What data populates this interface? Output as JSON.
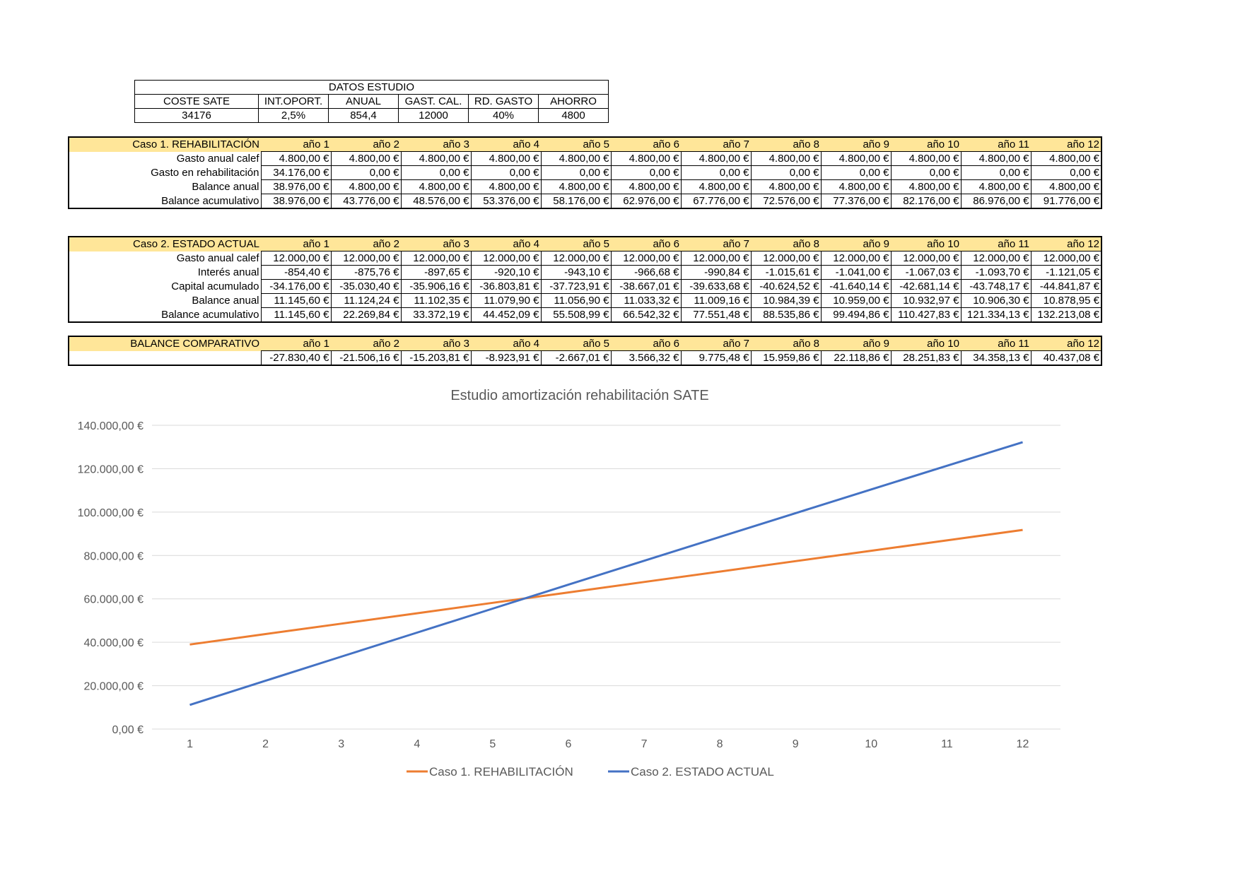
{
  "datos": {
    "title": "DATOS ESTUDIO",
    "headers": [
      "COSTE SATE",
      "INT.OPORT.",
      "ANUAL",
      "GAST. CAL.",
      "RD. GASTO",
      "AHORRO"
    ],
    "values": [
      "34176",
      "2,5%",
      "854,4",
      "12000",
      "40%",
      "4800"
    ]
  },
  "caso1": {
    "title": "Caso 1. REHABILITACIÓN",
    "years": [
      "año 1",
      "año 2",
      "año 3",
      "año 4",
      "año 5",
      "año 6",
      "año 7",
      "año 8",
      "año 9",
      "año 10",
      "año 11",
      "año 12"
    ],
    "rows": [
      {
        "label": "Gasto anual calef",
        "values": [
          "4.800,00 €",
          "4.800,00 €",
          "4.800,00 €",
          "4.800,00 €",
          "4.800,00 €",
          "4.800,00 €",
          "4.800,00 €",
          "4.800,00 €",
          "4.800,00 €",
          "4.800,00 €",
          "4.800,00 €",
          "4.800,00 €"
        ]
      },
      {
        "label": "Gasto en rehabilitación",
        "values": [
          "34.176,00 €",
          "0,00 €",
          "0,00 €",
          "0,00 €",
          "0,00 €",
          "0,00 €",
          "0,00 €",
          "0,00 €",
          "0,00 €",
          "0,00 €",
          "0,00 €",
          "0,00 €"
        ]
      },
      {
        "label": "Balance anual",
        "values": [
          "38.976,00 €",
          "4.800,00 €",
          "4.800,00 €",
          "4.800,00 €",
          "4.800,00 €",
          "4.800,00 €",
          "4.800,00 €",
          "4.800,00 €",
          "4.800,00 €",
          "4.800,00 €",
          "4.800,00 €",
          "4.800,00 €"
        ]
      },
      {
        "label": "Balance acumulativo",
        "values": [
          "38.976,00 €",
          "43.776,00 €",
          "48.576,00 €",
          "53.376,00 €",
          "58.176,00 €",
          "62.976,00 €",
          "67.776,00 €",
          "72.576,00 €",
          "77.376,00 €",
          "82.176,00 €",
          "86.976,00 €",
          "91.776,00 €"
        ]
      }
    ]
  },
  "caso2": {
    "title": "Caso 2. ESTADO ACTUAL",
    "years": [
      "año 1",
      "año 2",
      "año 3",
      "año 4",
      "año 5",
      "año 6",
      "año 7",
      "año 8",
      "año 9",
      "año 10",
      "año 11",
      "año 12"
    ],
    "rows": [
      {
        "label": "Gasto anual calef",
        "values": [
          "12.000,00 €",
          "12.000,00 €",
          "12.000,00 €",
          "12.000,00 €",
          "12.000,00 €",
          "12.000,00 €",
          "12.000,00 €",
          "12.000,00 €",
          "12.000,00 €",
          "12.000,00 €",
          "12.000,00 €",
          "12.000,00 €"
        ]
      },
      {
        "label": "Interés anual",
        "values": [
          "-854,40 €",
          "-875,76 €",
          "-897,65 €",
          "-920,10 €",
          "-943,10 €",
          "-966,68 €",
          "-990,84 €",
          "-1.015,61 €",
          "-1.041,00 €",
          "-1.067,03 €",
          "-1.093,70 €",
          "-1.121,05 €"
        ]
      },
      {
        "label": "Capital acumulado",
        "values": [
          "-34.176,00 €",
          "-35.030,40 €",
          "-35.906,16 €",
          "-36.803,81 €",
          "-37.723,91 €",
          "-38.667,01 €",
          "-39.633,68 €",
          "-40.624,52 €",
          "-41.640,14 €",
          "-42.681,14 €",
          "-43.748,17 €",
          "-44.841,87 €"
        ]
      },
      {
        "label": "Balance anual",
        "values": [
          "11.145,60 €",
          "11.124,24 €",
          "11.102,35 €",
          "11.079,90 €",
          "11.056,90 €",
          "11.033,32 €",
          "11.009,16 €",
          "10.984,39 €",
          "10.959,00 €",
          "10.932,97 €",
          "10.906,30 €",
          "10.878,95 €"
        ]
      },
      {
        "label": "Balance acumulativo",
        "values": [
          "11.145,60 €",
          "22.269,84 €",
          "33.372,19 €",
          "44.452,09 €",
          "55.508,99 €",
          "66.542,32 €",
          "77.551,48 €",
          "88.535,86 €",
          "99.494,86 €",
          "110.427,83 €",
          "121.334,13 €",
          "132.213,08 €"
        ]
      }
    ]
  },
  "comparativo": {
    "title": "BALANCE COMPARATIVO",
    "years": [
      "año 1",
      "año 2",
      "año 3",
      "año 4",
      "año 5",
      "año 6",
      "año 7",
      "año 8",
      "año 9",
      "año 10",
      "año 11",
      "año 12"
    ],
    "rows": [
      {
        "label": "",
        "values": [
          "-27.830,40 €",
          "-21.506,16 €",
          "-15.203,81 €",
          "-8.923,91 €",
          "-2.667,01 €",
          "3.566,32 €",
          "9.775,48 €",
          "15.959,86 €",
          "22.118,86 €",
          "28.251,83 €",
          "34.358,13 €",
          "40.437,08 €"
        ]
      }
    ]
  },
  "chart_data": {
    "type": "line",
    "title": "Estudio amortización rehabilitación SATE",
    "xlabel": "",
    "ylabel": "",
    "x": [
      1,
      2,
      3,
      4,
      5,
      6,
      7,
      8,
      9,
      10,
      11,
      12
    ],
    "ylim": [
      0,
      140000
    ],
    "yticks": [
      "0,00 €",
      "20.000,00 €",
      "40.000,00 €",
      "60.000,00 €",
      "80.000,00 €",
      "100.000,00 €",
      "120.000,00 €",
      "140.000,00 €"
    ],
    "grid": true,
    "legend_position": "bottom",
    "series": [
      {
        "name": "Caso 1. REHABILITACIÓN",
        "color": "#ed7d31",
        "values": [
          38976,
          43776,
          48576,
          53376,
          58176,
          62976,
          67776,
          72576,
          77376,
          82176,
          86976,
          91776
        ]
      },
      {
        "name": "Caso 2. ESTADO ACTUAL",
        "color": "#4472c4",
        "values": [
          11145.6,
          22269.84,
          33372.19,
          44452.09,
          55508.99,
          66542.32,
          77551.48,
          88535.86,
          99494.86,
          110427.83,
          121334.13,
          132213.08
        ]
      }
    ]
  }
}
